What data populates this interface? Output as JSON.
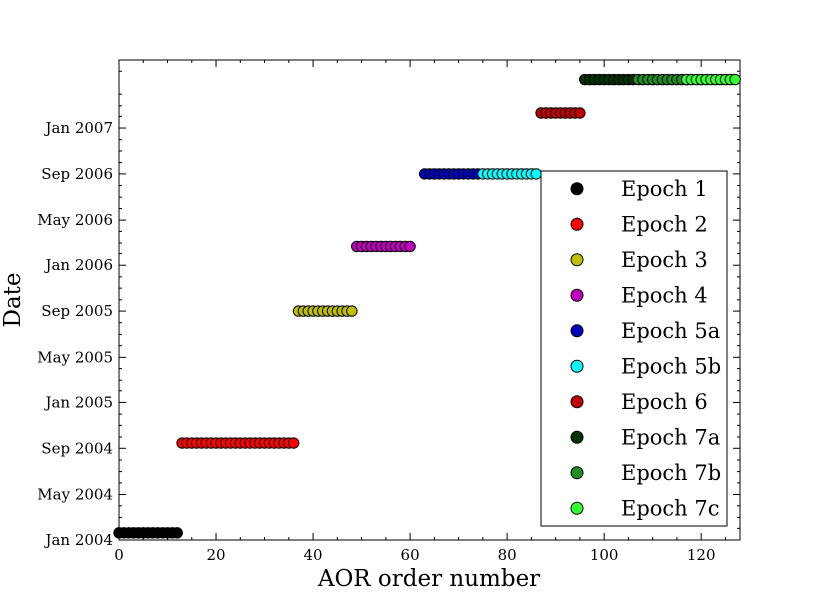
{
  "chart_data": {
    "type": "scatter",
    "xlabel": "AOR order number",
    "ylabel": "Date",
    "xlim": [
      0,
      128
    ],
    "ylim": [
      "2004-01-01",
      "2007-07-01"
    ],
    "x_ticks": [
      0,
      20,
      40,
      60,
      80,
      100,
      120
    ],
    "y_ticks": [
      "Jan 2004",
      "May 2004",
      "Sep 2004",
      "Jan 2005",
      "May 2005",
      "Sep 2005",
      "Jan 2006",
      "May 2006",
      "Sep 2006",
      "Jan 2007"
    ],
    "legend_position": "right",
    "grid": false,
    "series": [
      {
        "name": "Epoch 1",
        "color": "#000000",
        "x": [
          0,
          1,
          2,
          3,
          4,
          5,
          6,
          7,
          8,
          9,
          10,
          11,
          12
        ],
        "date": "2004-01-20"
      },
      {
        "name": "Epoch 2",
        "color": "#ff0000",
        "x": [
          13,
          14,
          15,
          16,
          17,
          18,
          19,
          20,
          21,
          22,
          23,
          24,
          25,
          26,
          27,
          28,
          29,
          30,
          31,
          32,
          33,
          34,
          35,
          36
        ],
        "date": "2004-09-15"
      },
      {
        "name": "Epoch 3",
        "color": "#bfbf00",
        "x": [
          37,
          38,
          39,
          40,
          41,
          42,
          43,
          44,
          45,
          46,
          47,
          48
        ],
        "date": "2005-09-01"
      },
      {
        "name": "Epoch 4",
        "color": "#bf00bf",
        "x": [
          49,
          50,
          51,
          52,
          53,
          54,
          55,
          56,
          57,
          58,
          59,
          60
        ],
        "date": "2006-02-20"
      },
      {
        "name": "Epoch 5a",
        "color": "#0000bf",
        "x": [
          63,
          64,
          65,
          66,
          67,
          68,
          69,
          70,
          71,
          72,
          73,
          74
        ],
        "date": "2006-09-01"
      },
      {
        "name": "Epoch 5b",
        "color": "#00ffff",
        "x": [
          75,
          76,
          77,
          78,
          79,
          80,
          81,
          82,
          83,
          84,
          85,
          86
        ],
        "date": "2006-09-01"
      },
      {
        "name": "Epoch 6",
        "color": "#bf0000",
        "x": [
          87,
          88,
          89,
          90,
          91,
          92,
          93,
          94,
          95
        ],
        "date": "2007-02-10"
      },
      {
        "name": "Epoch 7a",
        "color": "#003300",
        "x": [
          96,
          97,
          98,
          99,
          100,
          101,
          102,
          103,
          104,
          105,
          106
        ],
        "date": "2007-05-10"
      },
      {
        "name": "Epoch 7b",
        "color": "#218c21",
        "x": [
          107,
          108,
          109,
          110,
          111,
          112,
          113,
          114,
          115,
          116,
          117
        ],
        "date": "2007-05-10"
      },
      {
        "name": "Epoch 7c",
        "color": "#33ff33",
        "x": [
          117,
          118,
          119,
          120,
          121,
          122,
          123,
          124,
          125,
          126,
          127
        ],
        "date": "2007-05-10"
      }
    ]
  }
}
